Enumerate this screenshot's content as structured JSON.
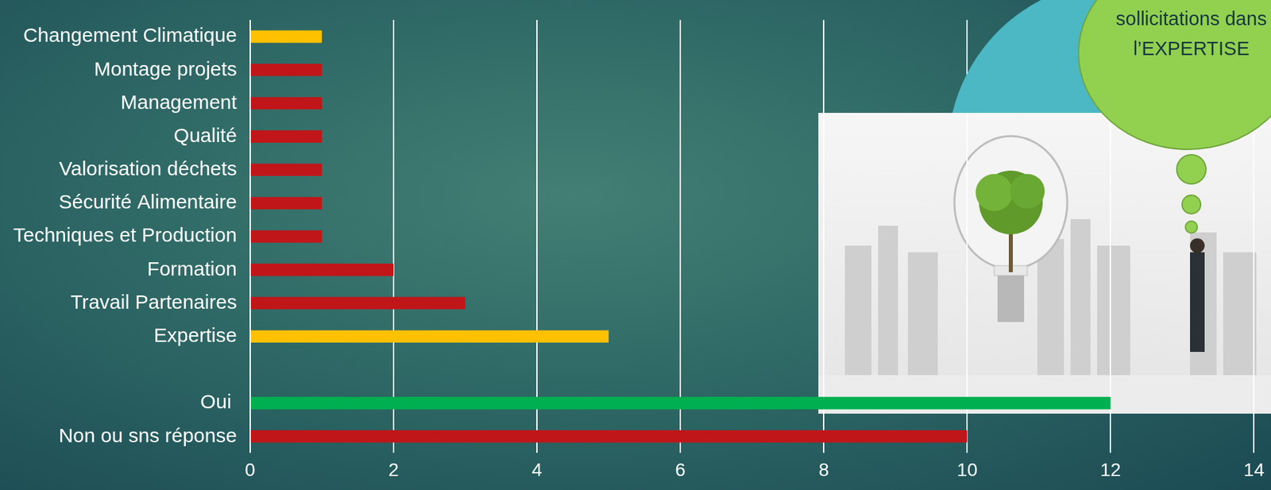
{
  "chart_data": {
    "type": "bar",
    "orientation": "horizontal",
    "annotation": "sollicitations dans l’EXPERTISE",
    "categories": [
      "Changement Climatique",
      "Montage projets",
      "Management",
      "Qualité",
      "Valorisation déchets",
      "Sécurité Alimentaire",
      "Techniques et Production",
      "Formation",
      "Travail Partenaires",
      "Expertise",
      null,
      "Oui ",
      "Non ou sns réponse"
    ],
    "values": [
      1,
      1,
      1,
      1,
      1,
      1,
      1,
      2,
      3,
      5,
      null,
      12,
      10
    ],
    "colors": [
      "#ffc000",
      "#c0161a",
      "#c0161a",
      "#c0161a",
      "#c0161a",
      "#c0161a",
      "#c0161a",
      "#c0161a",
      "#c0161a",
      "#ffc000",
      null,
      "#00b050",
      "#c0161a"
    ],
    "xlim": [
      0,
      14
    ],
    "xticks": [
      0,
      2,
      4,
      6,
      8,
      10,
      12,
      14
    ],
    "grid": true,
    "data_labels": false
  }
}
